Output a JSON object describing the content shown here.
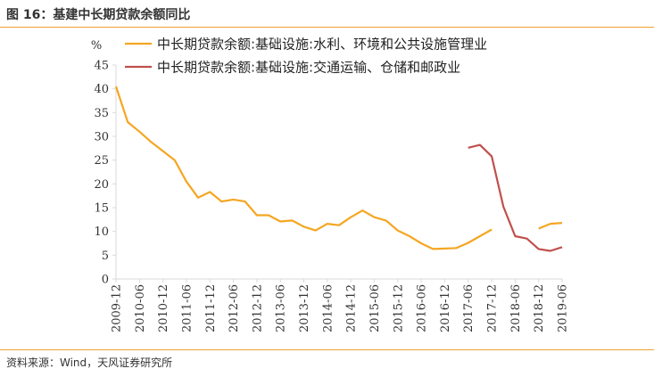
{
  "figure": {
    "title": "图 16：基建中长期贷款余额同比",
    "source": "资料来源：Wind，天风证券研究所"
  },
  "colors": {
    "series1": "#f5a623",
    "series2": "#c0504d",
    "accent_rule": "#f0a030",
    "axis": "#d9d9d9",
    "text": "#333333"
  },
  "chart_data": {
    "type": "line",
    "unit_label": "%",
    "ylim": [
      0,
      45
    ],
    "yticks": [
      0,
      5,
      10,
      15,
      20,
      25,
      30,
      35,
      40,
      45
    ],
    "grid": false,
    "legend_position": "top-right",
    "x_tick_labels": [
      "2009-12",
      "2010-06",
      "2010-12",
      "2011-06",
      "2011-12",
      "2012-06",
      "2012-12",
      "2013-06",
      "2013-12",
      "2014-06",
      "2014-12",
      "2015-06",
      "2015-12",
      "2016-06",
      "2016-12",
      "2017-06",
      "2017-12",
      "2018-06",
      "2018-12",
      "2019-06"
    ],
    "x_range": [
      "2009-12",
      "2019-06"
    ],
    "series": [
      {
        "name": "中长期贷款余额:基础设施:水利、环境和公共设施管理业",
        "color": "#f5a623",
        "points": [
          [
            "2009-12",
            40.5
          ],
          [
            "2010-03",
            33.0
          ],
          [
            "2010-06",
            31.0
          ],
          [
            "2010-09",
            28.8
          ],
          [
            "2010-12",
            26.9
          ],
          [
            "2011-03",
            25.0
          ],
          [
            "2011-06",
            20.5
          ],
          [
            "2011-09",
            17.1
          ],
          [
            "2011-12",
            18.3
          ],
          [
            "2012-03",
            16.3
          ],
          [
            "2012-06",
            16.7
          ],
          [
            "2012-09",
            16.3
          ],
          [
            "2012-12",
            13.4
          ],
          [
            "2013-03",
            13.4
          ],
          [
            "2013-06",
            12.1
          ],
          [
            "2013-09",
            12.3
          ],
          [
            "2013-12",
            11.0
          ],
          [
            "2014-03",
            10.2
          ],
          [
            "2014-06",
            11.6
          ],
          [
            "2014-09",
            11.3
          ],
          [
            "2014-12",
            13.0
          ],
          [
            "2015-03",
            14.4
          ],
          [
            "2015-06",
            13.0
          ],
          [
            "2015-09",
            12.3
          ],
          [
            "2015-12",
            10.2
          ],
          [
            "2016-03",
            9.0
          ],
          [
            "2016-06",
            7.5
          ],
          [
            "2016-09",
            6.3
          ],
          [
            "2016-12",
            6.4
          ],
          [
            "2017-03",
            6.5
          ],
          [
            "2017-06",
            7.6
          ],
          [
            "2017-09",
            9.0
          ],
          [
            "2017-12",
            10.4
          ],
          [
            "2018-03",
            null
          ],
          [
            "2018-06",
            null
          ],
          [
            "2018-09",
            null
          ],
          [
            "2018-12",
            10.6
          ],
          [
            "2019-03",
            11.6
          ],
          [
            "2019-06",
            11.8
          ]
        ]
      },
      {
        "name": "中长期贷款余额:基础设施:交通运输、仓储和邮政业",
        "color": "#c0504d",
        "points": [
          [
            "2017-06",
            27.6
          ],
          [
            "2017-09",
            28.2
          ],
          [
            "2017-12",
            25.8
          ],
          [
            "2018-03",
            15.2
          ],
          [
            "2018-06",
            9.0
          ],
          [
            "2018-09",
            8.5
          ],
          [
            "2018-12",
            6.3
          ],
          [
            "2019-03",
            5.9
          ],
          [
            "2019-06",
            6.7
          ]
        ]
      }
    ]
  }
}
